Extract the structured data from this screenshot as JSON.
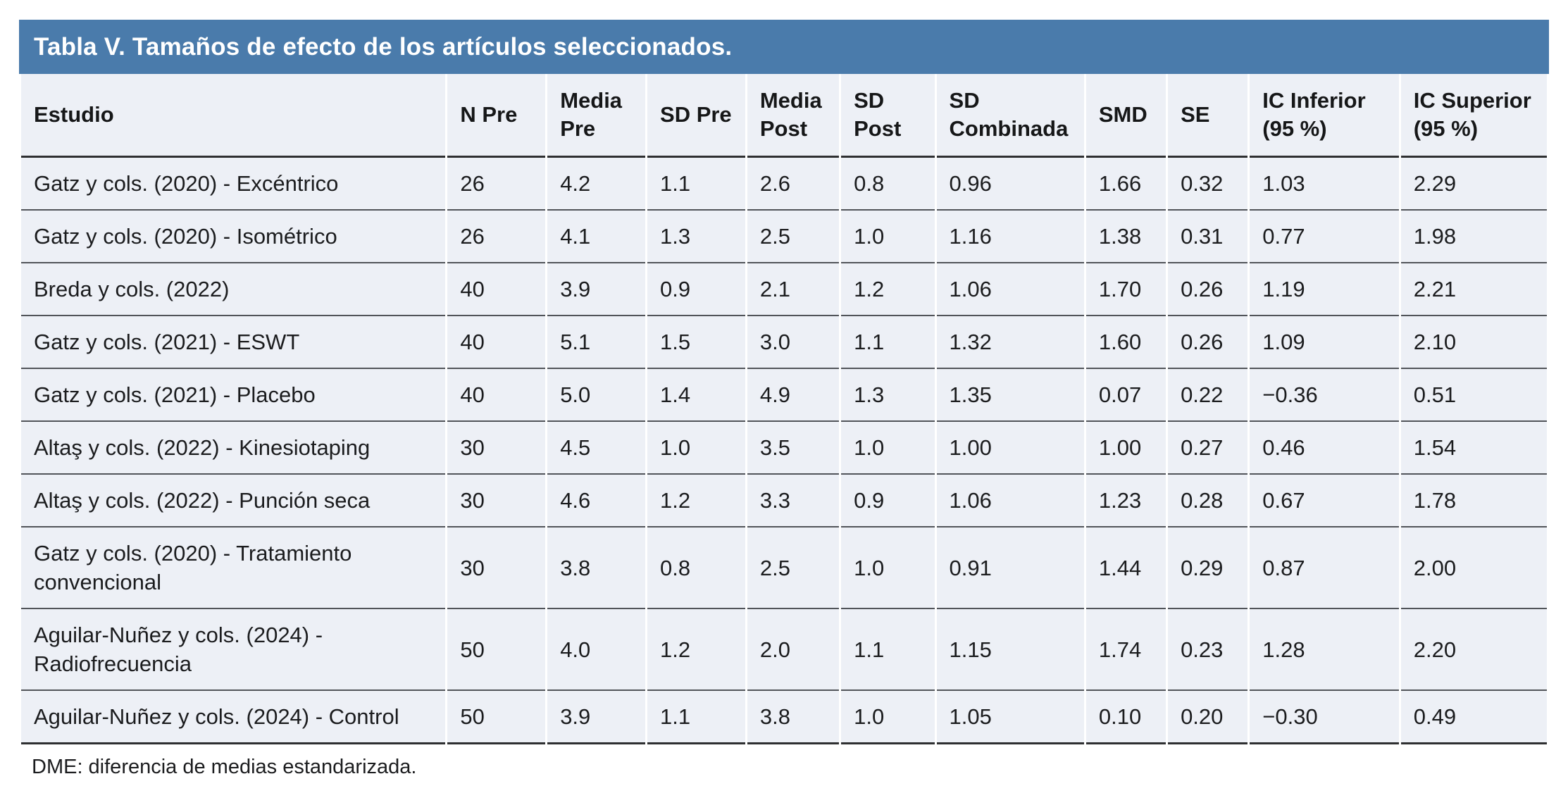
{
  "title": "Tabla V. Tamaños de efecto de los artículos seleccionados.",
  "footnote": "DME: diferencia de medias estandarizada.",
  "colors": {
    "title_bar_bg": "#4a7bab",
    "title_text": "#ffffff",
    "row_bg": "#edf0f6",
    "rule_dark": "#2e2f31",
    "rule_row": "#515459"
  },
  "table": {
    "columns": [
      "Estudio",
      "N Pre",
      "Media Pre",
      "SD Pre",
      "Media Post",
      "SD Post",
      "SD Combinada",
      "SMD",
      "SE",
      "IC Inferior (95 %)",
      "IC Superior (95 %)"
    ],
    "rows": [
      {
        "cells": [
          "Gatz y cols. (2020) - Excéntrico",
          "26",
          "4.2",
          "1.1",
          "2.6",
          "0.8",
          "0.96",
          "1.66",
          "0.32",
          "1.03",
          "2.29"
        ]
      },
      {
        "cells": [
          "Gatz y cols. (2020) - Isométrico",
          "26",
          "4.1",
          "1.3",
          "2.5",
          "1.0",
          "1.16",
          "1.38",
          "0.31",
          "0.77",
          "1.98"
        ]
      },
      {
        "cells": [
          "Breda y cols. (2022)",
          "40",
          "3.9",
          "0.9",
          "2.1",
          "1.2",
          "1.06",
          "1.70",
          "0.26",
          "1.19",
          "2.21"
        ]
      },
      {
        "cells": [
          "Gatz y cols. (2021) - ESWT",
          "40",
          "5.1",
          "1.5",
          "3.0",
          "1.1",
          "1.32",
          "1.60",
          "0.26",
          "1.09",
          "2.10"
        ]
      },
      {
        "cells": [
          "Gatz y cols. (2021) - Placebo",
          "40",
          "5.0",
          "1.4",
          "4.9",
          "1.3",
          "1.35",
          "0.07",
          "0.22",
          "−0.36",
          "0.51"
        ]
      },
      {
        "cells": [
          "Altaş y cols. (2022) - Kinesiotaping",
          "30",
          "4.5",
          "1.0",
          "3.5",
          "1.0",
          "1.00",
          "1.00",
          "0.27",
          "0.46",
          "1.54"
        ]
      },
      {
        "cells": [
          "Altaş y cols. (2022) - Punción seca",
          "30",
          "4.6",
          "1.2",
          "3.3",
          "0.9",
          "1.06",
          "1.23",
          "0.28",
          "0.67",
          "1.78"
        ]
      },
      {
        "cells": [
          "Gatz y cols. (2020) - Tratamiento convencional",
          "30",
          "3.8",
          "0.8",
          "2.5",
          "1.0",
          "0.91",
          "1.44",
          "0.29",
          "0.87",
          "2.00"
        ]
      },
      {
        "cells": [
          "Aguilar-Nuñez y cols. (2024) - Radiofrecuencia",
          "50",
          "4.0",
          "1.2",
          "2.0",
          "1.1",
          "1.15",
          "1.74",
          "0.23",
          "1.28",
          "2.20"
        ]
      },
      {
        "cells": [
          "Aguilar-Nuñez y cols. (2024) - Control",
          "50",
          "3.9",
          "1.1",
          "3.8",
          "1.0",
          "1.05",
          "0.10",
          "0.20",
          "−0.30",
          "0.49"
        ]
      }
    ]
  }
}
